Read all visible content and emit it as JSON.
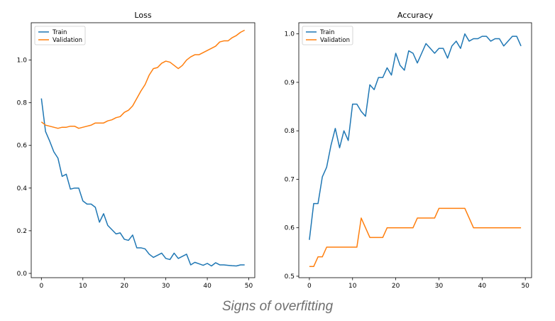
{
  "caption": "Signs of overfitting",
  "colors": {
    "train": "#1f77b4",
    "validation": "#ff7f0e",
    "axis": "#000000"
  },
  "chart_data": [
    {
      "type": "line",
      "title": "Loss",
      "xlabel": "",
      "ylabel": "",
      "xlim": [
        -2.45,
        51.45
      ],
      "ylim": [
        -0.02,
        1.175
      ],
      "xticks": [
        0,
        10,
        20,
        30,
        40,
        50
      ],
      "yticks": [
        0.0,
        0.2,
        0.4,
        0.6,
        0.8,
        1.0
      ],
      "ytick_labels": [
        "0.0",
        "0.2",
        "0.4",
        "0.6",
        "0.8",
        "1.0"
      ],
      "grid": false,
      "legend": "top-left",
      "x": [
        0,
        1,
        2,
        3,
        4,
        5,
        6,
        7,
        8,
        9,
        10,
        11,
        12,
        13,
        14,
        15,
        16,
        17,
        18,
        19,
        20,
        21,
        22,
        23,
        24,
        25,
        26,
        27,
        28,
        29,
        30,
        31,
        32,
        33,
        34,
        35,
        36,
        37,
        38,
        39,
        40,
        41,
        42,
        43,
        44,
        45,
        46,
        47,
        48,
        49
      ],
      "series": [
        {
          "name": "Train",
          "color": "#1f77b4",
          "values": [
            0.82,
            0.665,
            0.62,
            0.57,
            0.54,
            0.455,
            0.465,
            0.395,
            0.4,
            0.4,
            0.34,
            0.325,
            0.325,
            0.31,
            0.24,
            0.28,
            0.225,
            0.205,
            0.185,
            0.19,
            0.16,
            0.155,
            0.18,
            0.12,
            0.12,
            0.115,
            0.09,
            0.075,
            0.085,
            0.095,
            0.07,
            0.065,
            0.095,
            0.07,
            0.08,
            0.09,
            0.04,
            0.052,
            0.045,
            0.038,
            0.047,
            0.035,
            0.05,
            0.04,
            0.04,
            0.038,
            0.036,
            0.035,
            0.04,
            0.04
          ]
        },
        {
          "name": "Validation",
          "color": "#ff7f0e",
          "values": [
            0.71,
            0.695,
            0.69,
            0.685,
            0.68,
            0.685,
            0.685,
            0.69,
            0.69,
            0.68,
            0.685,
            0.69,
            0.695,
            0.705,
            0.705,
            0.705,
            0.715,
            0.72,
            0.73,
            0.735,
            0.755,
            0.765,
            0.785,
            0.82,
            0.855,
            0.885,
            0.93,
            0.96,
            0.965,
            0.985,
            0.995,
            0.99,
            0.975,
            0.96,
            0.975,
            1.0,
            1.015,
            1.025,
            1.025,
            1.035,
            1.045,
            1.055,
            1.065,
            1.085,
            1.09,
            1.09,
            1.105,
            1.115,
            1.13,
            1.14
          ]
        }
      ]
    },
    {
      "type": "line",
      "title": "Accuracy",
      "xlabel": "",
      "ylabel": "",
      "xlim": [
        -2.45,
        51.45
      ],
      "ylim": [
        0.497,
        1.023
      ],
      "xticks": [
        0,
        10,
        20,
        30,
        40,
        50
      ],
      "yticks": [
        0.5,
        0.6,
        0.7,
        0.8,
        0.9,
        1.0
      ],
      "ytick_labels": [
        "0.5",
        "0.6",
        "0.7",
        "0.8",
        "0.9",
        "1.0"
      ],
      "grid": false,
      "legend": "top-left",
      "x": [
        0,
        1,
        2,
        3,
        4,
        5,
        6,
        7,
        8,
        9,
        10,
        11,
        12,
        13,
        14,
        15,
        16,
        17,
        18,
        19,
        20,
        21,
        22,
        23,
        24,
        25,
        26,
        27,
        28,
        29,
        30,
        31,
        32,
        33,
        34,
        35,
        36,
        37,
        38,
        39,
        40,
        41,
        42,
        43,
        44,
        45,
        46,
        47,
        48,
        49
      ],
      "series": [
        {
          "name": "Train",
          "color": "#1f77b4",
          "values": [
            0.575,
            0.65,
            0.65,
            0.705,
            0.725,
            0.77,
            0.805,
            0.765,
            0.8,
            0.78,
            0.855,
            0.855,
            0.84,
            0.83,
            0.895,
            0.885,
            0.91,
            0.91,
            0.93,
            0.915,
            0.96,
            0.935,
            0.925,
            0.965,
            0.96,
            0.94,
            0.96,
            0.98,
            0.97,
            0.96,
            0.97,
            0.97,
            0.95,
            0.975,
            0.985,
            0.97,
            1.0,
            0.985,
            0.99,
            0.99,
            0.995,
            0.995,
            0.985,
            0.99,
            0.99,
            0.975,
            0.985,
            0.995,
            0.995,
            0.975
          ]
        },
        {
          "name": "Validation",
          "color": "#ff7f0e",
          "values": [
            0.52,
            0.52,
            0.54,
            0.54,
            0.56,
            0.56,
            0.56,
            0.56,
            0.56,
            0.56,
            0.56,
            0.56,
            0.62,
            0.6,
            0.58,
            0.58,
            0.58,
            0.58,
            0.6,
            0.6,
            0.6,
            0.6,
            0.6,
            0.6,
            0.6,
            0.62,
            0.62,
            0.62,
            0.62,
            0.62,
            0.64,
            0.64,
            0.64,
            0.64,
            0.64,
            0.64,
            0.64,
            0.62,
            0.6,
            0.6,
            0.6,
            0.6,
            0.6,
            0.6,
            0.6,
            0.6,
            0.6,
            0.6,
            0.6,
            0.6
          ]
        }
      ]
    }
  ]
}
